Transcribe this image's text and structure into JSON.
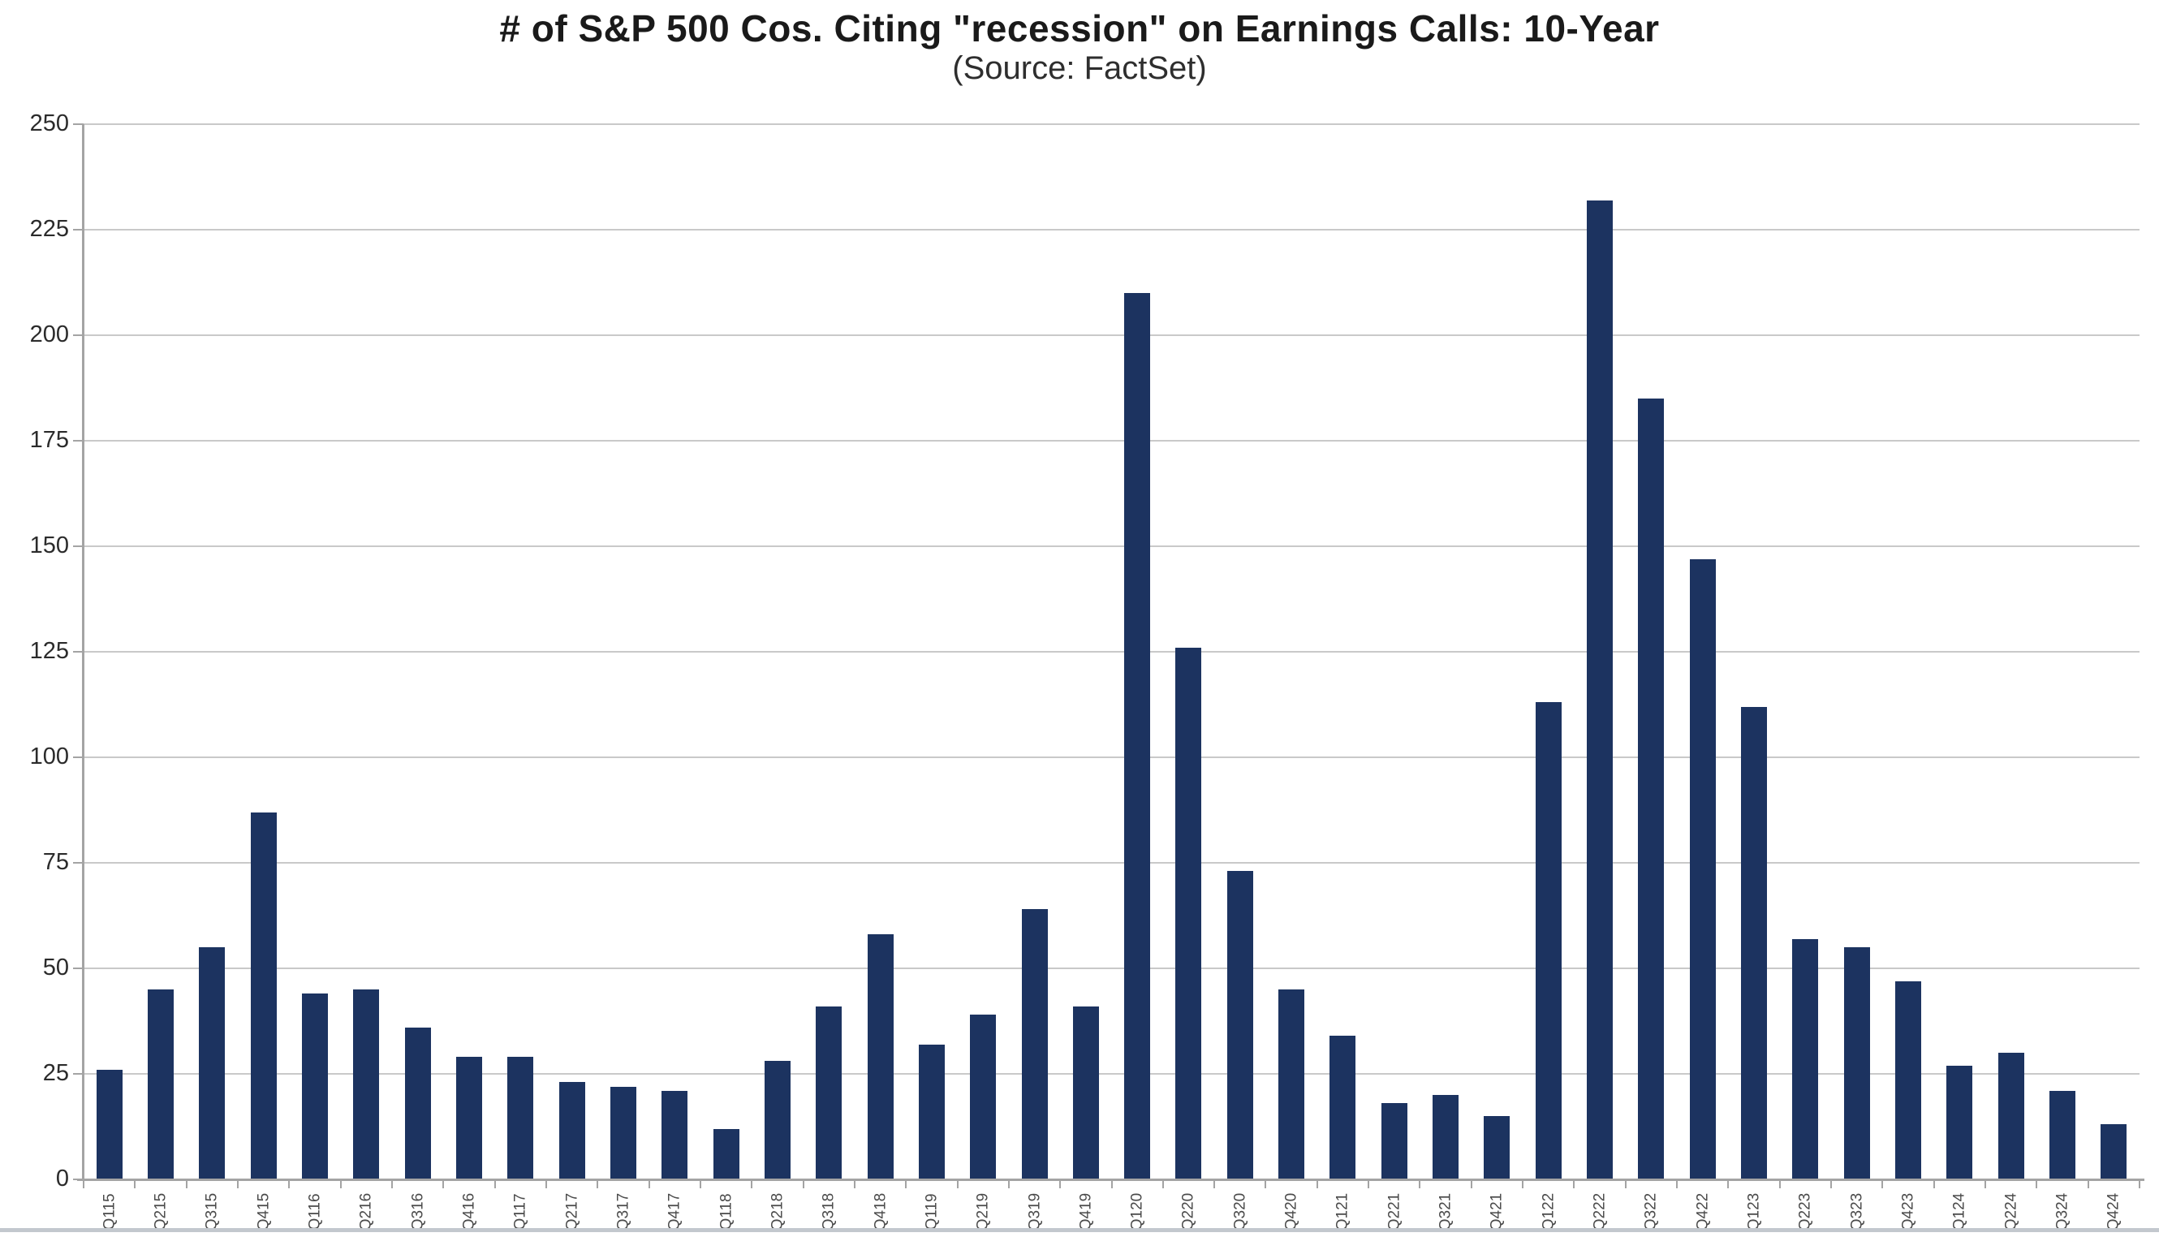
{
  "title": "# of S&P 500 Cos. Citing \"recession\" on Earnings Calls: 10-Year",
  "subtitle": "(Source: FactSet)",
  "chart_data": {
    "type": "bar",
    "title": "# of S&P 500 Cos. Citing \"recession\" on Earnings Calls: 10-Year",
    "subtitle": "(Source: FactSet)",
    "xlabel": "",
    "ylabel": "",
    "categories": [
      "Q115",
      "Q215",
      "Q315",
      "Q415",
      "Q116",
      "Q216",
      "Q316",
      "Q416",
      "Q117",
      "Q217",
      "Q317",
      "Q417",
      "Q118",
      "Q218",
      "Q318",
      "Q418",
      "Q119",
      "Q219",
      "Q319",
      "Q419",
      "Q120",
      "Q220",
      "Q320",
      "Q420",
      "Q121",
      "Q221",
      "Q321",
      "Q421",
      "Q122",
      "Q222",
      "Q322",
      "Q422",
      "Q123",
      "Q223",
      "Q323",
      "Q423",
      "Q124",
      "Q224",
      "Q324",
      "Q424"
    ],
    "values": [
      26,
      45,
      55,
      87,
      44,
      45,
      36,
      29,
      29,
      23,
      22,
      21,
      12,
      28,
      41,
      58,
      32,
      39,
      64,
      41,
      210,
      126,
      73,
      45,
      34,
      18,
      20,
      15,
      113,
      232,
      185,
      147,
      112,
      57,
      55,
      47,
      27,
      30,
      21,
      13
    ],
    "ylim": [
      0,
      250
    ],
    "ytick_step": 25,
    "ytick_labels": [
      "0",
      "25",
      "50",
      "75",
      "100",
      "125",
      "150",
      "175",
      "200",
      "225",
      "250"
    ],
    "grid": "horizontal",
    "legend": "none",
    "colors": {
      "bar": "#1c3360",
      "gridline": "#c9c9c9",
      "axis": "#a4a4a4",
      "title": "#1a1a1a",
      "tick_label": "#2b2b2b",
      "category_label": "#4a4a4a"
    }
  }
}
